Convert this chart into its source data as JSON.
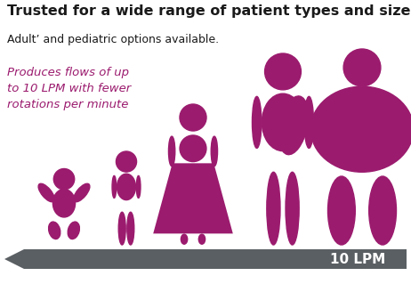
{
  "bg_color": "#ffffff",
  "title": "Trusted for a wide range of patient types and sizes",
  "subtitle": "Adult’ and pediatric options available.",
  "annotation": "Produces flows of up\nto 10 LPM with fewer\nrotations per minute",
  "arrow_label": "10 LPM",
  "arrow_color": "#5a5f63",
  "figure_color": "#9b1b6e",
  "title_color": "#1a1a1a",
  "subtitle_color": "#1a1a1a",
  "annotation_color": "#9b1b6e",
  "arrow_label_color": "#ffffff",
  "title_fontsize": 11.5,
  "subtitle_fontsize": 9,
  "annotation_fontsize": 9.5,
  "arrow_label_fontsize": 11
}
